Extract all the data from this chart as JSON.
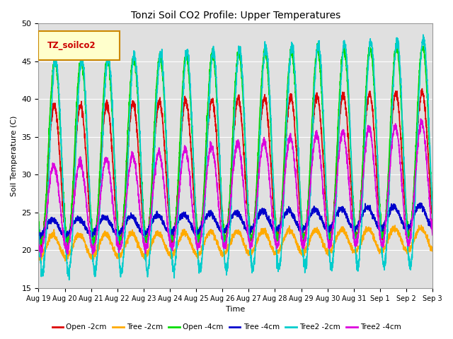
{
  "title": "Tonzi Soil CO2 Profile: Upper Temperatures",
  "xlabel": "Time",
  "ylabel": "Soil Temperature (C)",
  "ylim": [
    15,
    50
  ],
  "xlim": [
    0,
    15
  ],
  "background_color": "#ffffff",
  "plot_bg_color": "#e0e0e0",
  "grid_color": "#ffffff",
  "legend_label": "TZ_soilco2",
  "series": [
    {
      "name": "Open -2cm",
      "color": "#dd0000",
      "lw": 1.2
    },
    {
      "name": "Tree -2cm",
      "color": "#ffaa00",
      "lw": 1.2
    },
    {
      "name": "Open -4cm",
      "color": "#00dd00",
      "lw": 1.2
    },
    {
      "name": "Tree -4cm",
      "color": "#0000cc",
      "lw": 1.2
    },
    {
      "name": "Tree2 -2cm",
      "color": "#00cccc",
      "lw": 1.2
    },
    {
      "name": "Tree2 -4cm",
      "color": "#dd00dd",
      "lw": 1.2
    }
  ],
  "xtick_labels": [
    "Aug 19",
    "Aug 20",
    "Aug 21",
    "Aug 22",
    "Aug 23",
    "Aug 24",
    "Aug 25",
    "Aug 26",
    "Aug 27",
    "Aug 28",
    "Aug 29",
    "Aug 30",
    "Aug 31",
    "Sep 1",
    "Sep 2",
    "Sep 3"
  ],
  "xtick_positions": [
    0,
    1,
    2,
    3,
    4,
    5,
    6,
    7,
    8,
    9,
    10,
    11,
    12,
    13,
    14,
    15
  ],
  "ytick_positions": [
    15,
    20,
    25,
    30,
    35,
    40,
    45,
    50
  ]
}
